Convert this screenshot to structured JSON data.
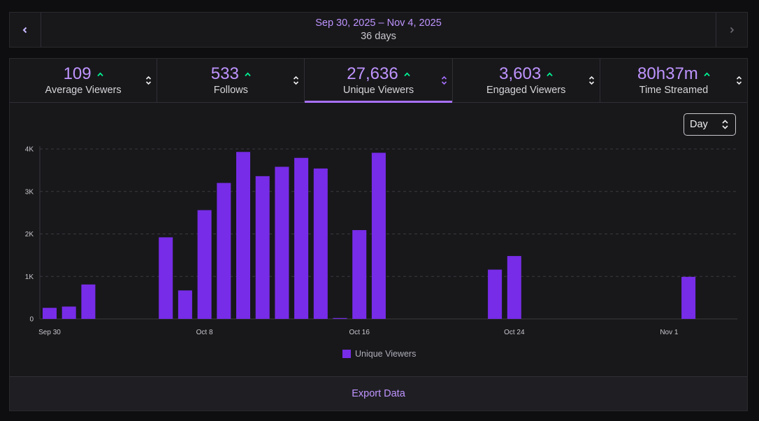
{
  "date_bar": {
    "range": "Sep 30, 2025 – Nov 4, 2025",
    "days": "36 days",
    "prev_icon": "chevron-left-icon",
    "next_icon": "chevron-right-icon"
  },
  "stats": [
    {
      "value": "109",
      "label": "Average Viewers",
      "trend": "up",
      "active": false
    },
    {
      "value": "533",
      "label": "Follows",
      "trend": "up",
      "active": false
    },
    {
      "value": "27,636",
      "label": "Unique Viewers",
      "trend": "up",
      "active": true
    },
    {
      "value": "3,603",
      "label": "Engaged Viewers",
      "trend": "up",
      "active": false
    },
    {
      "value": "80h37m",
      "label": "Time Streamed",
      "trend": "up",
      "active": false
    }
  ],
  "interval_select": {
    "value": "Day"
  },
  "colors": {
    "accent": "#bf94ff",
    "bar": "#772ce8",
    "trend_up": "#00f593",
    "active_tab": "#a970ff"
  },
  "chart_data": {
    "type": "bar",
    "series_name": "Unique Viewers",
    "x_labels": [
      "Sep 30",
      "Oct 8",
      "Oct 16",
      "Oct 24",
      "Nov 1"
    ],
    "x_label_day_index": [
      0,
      8,
      16,
      24,
      32
    ],
    "categories": [
      "Sep 30",
      "Oct 1",
      "Oct 2",
      "Oct 3",
      "Oct 4",
      "Oct 5",
      "Oct 6",
      "Oct 7",
      "Oct 8",
      "Oct 9",
      "Oct 10",
      "Oct 11",
      "Oct 12",
      "Oct 13",
      "Oct 14",
      "Oct 15",
      "Oct 16",
      "Oct 17",
      "Oct 18",
      "Oct 19",
      "Oct 20",
      "Oct 21",
      "Oct 22",
      "Oct 23",
      "Oct 24",
      "Oct 25",
      "Oct 26",
      "Oct 27",
      "Oct 28",
      "Oct 29",
      "Oct 30",
      "Oct 31",
      "Nov 1",
      "Nov 2",
      "Nov 3",
      "Nov 4"
    ],
    "values": [
      260,
      290,
      810,
      0,
      0,
      0,
      1920,
      670,
      2560,
      3200,
      3930,
      3360,
      3580,
      3790,
      3540,
      20,
      2090,
      3910,
      0,
      0,
      0,
      0,
      0,
      1160,
      1480,
      0,
      0,
      0,
      0,
      0,
      0,
      0,
      0,
      990,
      0,
      0
    ],
    "y_ticks": [
      "0",
      "1K",
      "2K",
      "3K",
      "4K"
    ],
    "ylim": [
      0,
      4000
    ],
    "grid": true,
    "legend": "bottom-center"
  },
  "export": {
    "label": "Export Data"
  }
}
